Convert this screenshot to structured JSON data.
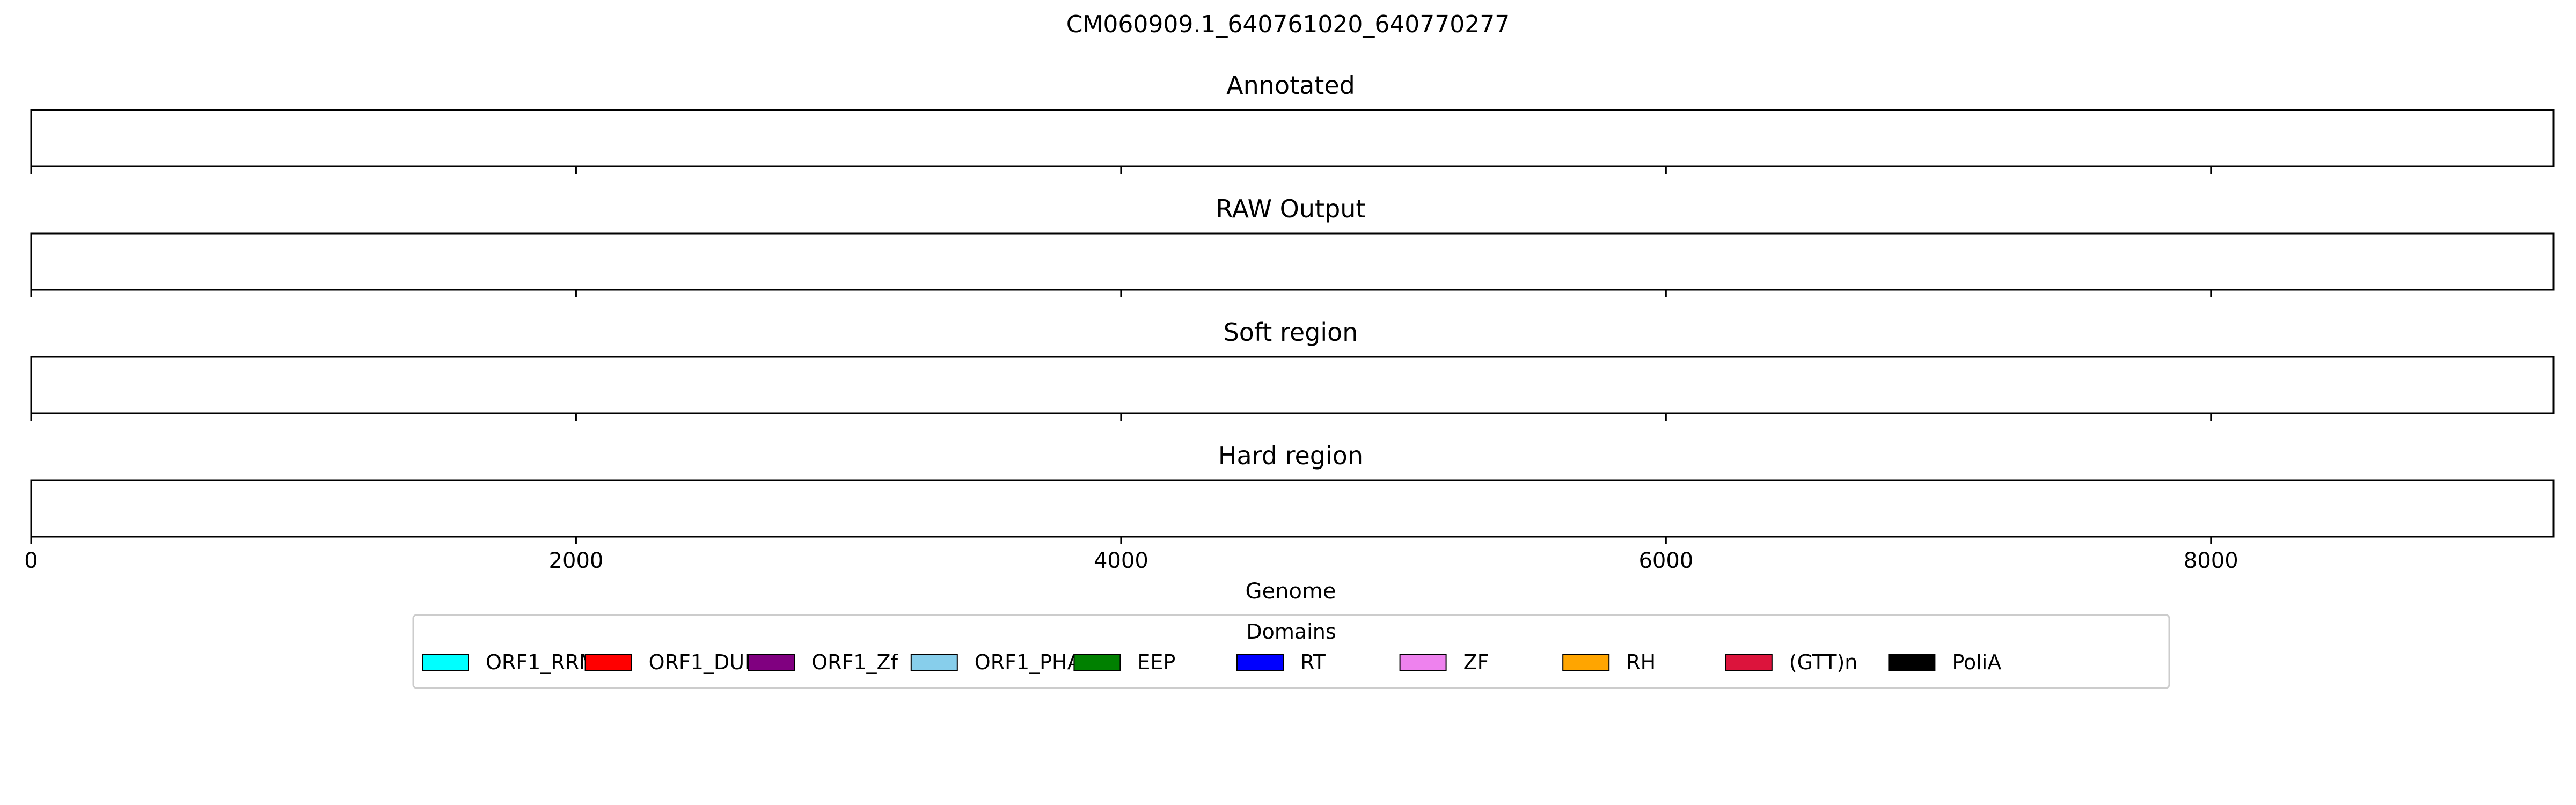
{
  "figure_title": "CM060909.1_640761020_640770277",
  "chart_data": {
    "type": "track",
    "x_label": "Genome",
    "xlim": [
      0,
      9257
    ],
    "x_ticks": [
      0,
      2000,
      4000,
      6000,
      8000
    ],
    "x_tick_labels": [
      "0",
      "2000",
      "4000",
      "6000",
      "8000"
    ],
    "tracks": [
      {
        "name": "Annotated",
        "segments": []
      },
      {
        "name": "RAW Output",
        "segments": []
      },
      {
        "name": "Soft region",
        "segments": []
      },
      {
        "name": "Hard region",
        "segments": []
      }
    ],
    "legend": {
      "title": "Domains",
      "position": "bottom-center",
      "entries": [
        {
          "label": "ORF1_RRM",
          "color": "#00FFFF"
        },
        {
          "label": "ORF1_DUF",
          "color": "#FF0000"
        },
        {
          "label": "ORF1_Zf",
          "color": "#800080"
        },
        {
          "label": "ORF1_PHA",
          "color": "#87CEEB"
        },
        {
          "label": "EEP",
          "color": "#008000"
        },
        {
          "label": "RT",
          "color": "#0000FF"
        },
        {
          "label": "ZF",
          "color": "#EE82EE"
        },
        {
          "label": "RH",
          "color": "#FFA500"
        },
        {
          "label": "(GTT)n",
          "color": "#DC143C"
        },
        {
          "label": "PoliA",
          "color": "#000000"
        }
      ]
    }
  }
}
